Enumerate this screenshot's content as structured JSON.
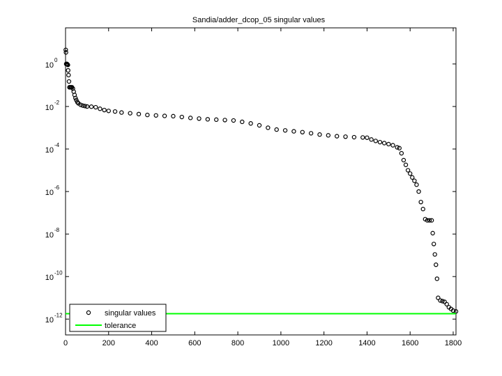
{
  "chart_data": {
    "type": "scatter",
    "title": "Sandia/adder_dcop_05 singular values",
    "yscale": "log",
    "xlim": [
      0,
      1813
    ],
    "ylim": [
      1.8e-13,
      50
    ],
    "xticks": [
      0,
      200,
      400,
      600,
      800,
      1000,
      1200,
      1400,
      1600,
      1800
    ],
    "yticks": [
      {
        "value": 1,
        "label": "10",
        "exponent": "0"
      },
      {
        "value": 0.01,
        "label": "10",
        "exponent": "-2"
      },
      {
        "value": 0.0001,
        "label": "10",
        "exponent": "-4"
      },
      {
        "value": 1e-06,
        "label": "10",
        "exponent": "-6"
      },
      {
        "value": 1e-08,
        "label": "10",
        "exponent": "-8"
      },
      {
        "value": 1e-10,
        "label": "10",
        "exponent": "-10"
      },
      {
        "value": 1e-12,
        "label": "10",
        "exponent": "-12"
      }
    ],
    "legend": "lower left",
    "series": [
      {
        "name": "singular values",
        "color": "#000000",
        "x": [
          1,
          2,
          3,
          5,
          7,
          9,
          11,
          12,
          14,
          16,
          18,
          22,
          26,
          30,
          34,
          38,
          42,
          46,
          50,
          55,
          60,
          70,
          80,
          90,
          100,
          120,
          140,
          160,
          180,
          200,
          230,
          260,
          300,
          340,
          380,
          420,
          460,
          500,
          540,
          580,
          620,
          660,
          700,
          740,
          780,
          820,
          860,
          900,
          940,
          980,
          1020,
          1060,
          1100,
          1140,
          1180,
          1220,
          1260,
          1300,
          1340,
          1380,
          1400,
          1420,
          1440,
          1460,
          1480,
          1500,
          1520,
          1540,
          1550,
          1560,
          1570,
          1580,
          1590,
          1600,
          1610,
          1620,
          1630,
          1640,
          1650,
          1660,
          1670,
          1680,
          1690,
          1700,
          1705,
          1710,
          1715,
          1720,
          1725,
          1730,
          1740,
          1750,
          1760,
          1770,
          1780,
          1790,
          1800,
          1813
        ],
        "values": [
          4.6,
          3.5,
          1.0,
          1.0,
          1.0,
          0.95,
          0.9,
          0.5,
          0.3,
          0.15,
          0.08,
          0.08,
          0.08,
          0.08,
          0.07,
          0.05,
          0.035,
          0.025,
          0.02,
          0.016,
          0.014,
          0.012,
          0.011,
          0.0105,
          0.01,
          0.0098,
          0.0092,
          0.0078,
          0.0068,
          0.0062,
          0.0058,
          0.0052,
          0.0048,
          0.0044,
          0.004,
          0.0038,
          0.0036,
          0.0035,
          0.0032,
          0.0029,
          0.0027,
          0.0025,
          0.0024,
          0.0023,
          0.0022,
          0.0019,
          0.0016,
          0.0013,
          0.001,
          0.00082,
          0.00075,
          0.00068,
          0.00062,
          0.00055,
          0.00048,
          0.00044,
          0.0004,
          0.00038,
          0.00036,
          0.00035,
          0.00034,
          0.00028,
          0.00024,
          0.00021,
          0.00019,
          0.00017,
          0.00015,
          0.00012,
          0.00011,
          6.3e-05,
          3e-05,
          1.8e-05,
          1e-05,
          7e-06,
          4.6e-06,
          3.2e-06,
          2.1e-06,
          1e-06,
          3.2e-07,
          1.5e-07,
          5e-08,
          4.4e-08,
          4.4e-08,
          4.4e-08,
          1.1e-08,
          3.4e-09,
          1.1e-09,
          3.6e-10,
          7.9e-11,
          1e-11,
          7.5e-12,
          7e-12,
          6.5e-12,
          5e-12,
          3.6e-12,
          3e-12,
          2.5e-12,
          2.3e-12
        ]
      },
      {
        "name": "tolerance",
        "color": "#00ff00",
        "value": 1.8e-12
      }
    ]
  }
}
